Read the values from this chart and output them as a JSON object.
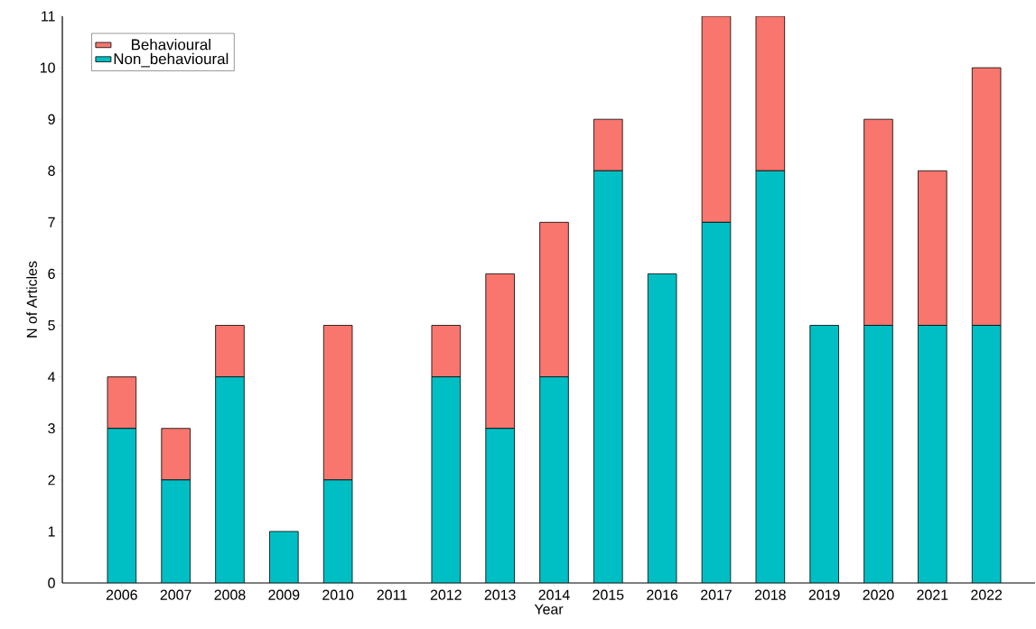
{
  "chart_data": {
    "type": "bar",
    "stacked": true,
    "xlabel": "Year",
    "ylabel": "N of Articles",
    "categories": [
      "2006",
      "2007",
      "2008",
      "2009",
      "2010",
      "2011",
      "2012",
      "2013",
      "2014",
      "2015",
      "2016",
      "2017",
      "2018",
      "2019",
      "2020",
      "2021",
      "2022"
    ],
    "series": [
      {
        "name": "Non_behavioural",
        "color": "#00bfc4",
        "values": [
          3,
          2,
          4,
          1,
          2,
          0,
          4,
          3,
          4,
          8,
          6,
          7,
          8,
          5,
          5,
          5,
          5
        ]
      },
      {
        "name": "Behavioural",
        "color": "#f8766d",
        "values": [
          1,
          1,
          1,
          0,
          3,
          0,
          1,
          3,
          3,
          1,
          0,
          4,
          3,
          0,
          4,
          3,
          5
        ]
      }
    ],
    "ylim": [
      0,
      11
    ],
    "yticks": [
      0,
      1,
      2,
      3,
      4,
      5,
      6,
      7,
      8,
      9,
      10,
      11
    ],
    "grid": false,
    "legend": "top left"
  }
}
